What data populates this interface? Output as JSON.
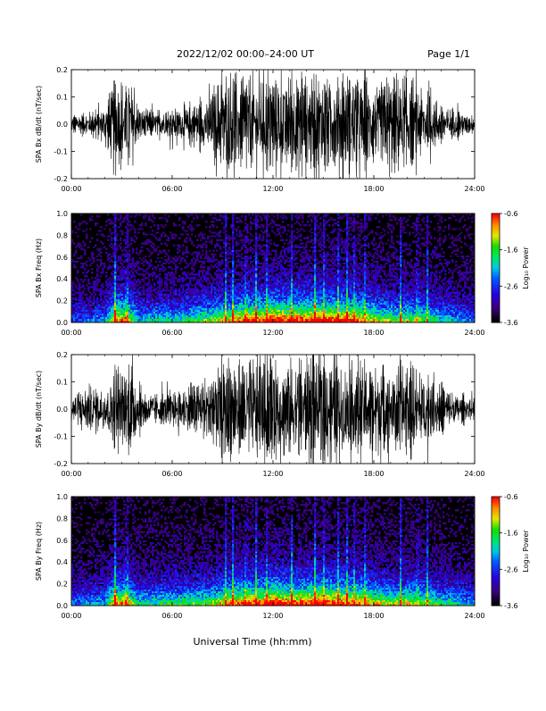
{
  "header": {
    "title": "2022/12/02  00:00–24:00 UT",
    "page": "Page 1/1"
  },
  "xaxis_label": "Universal Time (hh:mm)",
  "colorbar": {
    "label": "Log₁₀ Power",
    "ticks": [
      "-0.6",
      "-1.6",
      "-2.6",
      "-3.6"
    ],
    "range": [
      -3.6,
      -0.6
    ]
  },
  "chart_data": [
    {
      "type": "line",
      "ylabel": "SPA Bx dB/dt (nT/sec)",
      "xlim_hours": [
        0,
        24
      ],
      "ylim": [
        -0.2,
        0.2
      ],
      "x_ticks": [
        "00:00",
        "06:00",
        "12:00",
        "18:00",
        "24:00"
      ],
      "y_ticks": [
        "-0.2",
        "-0.1",
        "0.0",
        "0.1",
        "0.2"
      ],
      "series": [
        {
          "x_hours": [
            0,
            1,
            2,
            2.5,
            3,
            3.5,
            4,
            5,
            6,
            7,
            8,
            9,
            10,
            11,
            12,
            13,
            14,
            15,
            16,
            17,
            18,
            19,
            20,
            21,
            22,
            23,
            24
          ],
          "envelope_amplitude": [
            0.035,
            0.05,
            0.07,
            0.2,
            0.14,
            0.2,
            0.07,
            0.05,
            0.06,
            0.08,
            0.1,
            0.2,
            0.2,
            0.2,
            0.2,
            0.2,
            0.2,
            0.2,
            0.2,
            0.2,
            0.17,
            0.2,
            0.18,
            0.13,
            0.09,
            0.05,
            0.035
          ]
        }
      ]
    },
    {
      "type": "heatmap",
      "ylabel": "SPA Bx Freq (Hz)",
      "xlim_hours": [
        0,
        24
      ],
      "ylim": [
        0,
        1.0
      ],
      "x_ticks": [
        "00:00",
        "06:00",
        "12:00",
        "18:00",
        "24:00"
      ],
      "y_ticks": [
        "0.0",
        "0.2",
        "0.4",
        "0.6",
        "0.8",
        "1.0"
      ],
      "zlim": [
        -3.6,
        -0.6
      ],
      "activity_hours": [
        0,
        2,
        2.6,
        3.3,
        4,
        6,
        8,
        9.5,
        10.5,
        11.5,
        12,
        13,
        14.5,
        15.5,
        16.5,
        17,
        18,
        19,
        20,
        21,
        22,
        24
      ],
      "activity_level": [
        0.3,
        0.4,
        0.8,
        0.8,
        0.45,
        0.5,
        0.6,
        0.75,
        0.85,
        0.85,
        0.95,
        0.85,
        0.9,
        0.9,
        0.85,
        0.85,
        0.7,
        0.6,
        0.65,
        0.6,
        0.5,
        0.35
      ]
    },
    {
      "type": "line",
      "ylabel": "SPA By dB/dt (nT/sec)",
      "xlim_hours": [
        0,
        24
      ],
      "ylim": [
        -0.2,
        0.2
      ],
      "x_ticks": [
        "00:00",
        "06:00",
        "12:00",
        "18:00",
        "24:00"
      ],
      "y_ticks": [
        "-0.2",
        "-0.1",
        "0.0",
        "0.1",
        "0.2"
      ],
      "series": [
        {
          "x_hours": [
            0,
            1,
            2,
            2.5,
            3,
            3.5,
            4,
            5,
            6,
            7,
            8,
            9,
            10,
            11,
            12,
            13,
            14,
            15,
            16,
            17,
            18,
            19,
            20,
            21,
            22,
            23,
            24
          ],
          "envelope_amplitude": [
            0.05,
            0.1,
            0.08,
            0.2,
            0.13,
            0.2,
            0.09,
            0.06,
            0.07,
            0.1,
            0.12,
            0.2,
            0.2,
            0.2,
            0.2,
            0.2,
            0.2,
            0.2,
            0.2,
            0.2,
            0.2,
            0.17,
            0.18,
            0.14,
            0.1,
            0.06,
            0.04
          ]
        }
      ]
    },
    {
      "type": "heatmap",
      "ylabel": "SPA By Freq (Hz)",
      "xlim_hours": [
        0,
        24
      ],
      "ylim": [
        0,
        1.0
      ],
      "x_ticks": [
        "00:00",
        "06:00",
        "12:00",
        "18:00",
        "24:00"
      ],
      "y_ticks": [
        "0.0",
        "0.2",
        "0.4",
        "0.6",
        "0.8",
        "1.0"
      ],
      "zlim": [
        -3.6,
        -0.6
      ],
      "activity_hours": [
        0,
        2,
        2.6,
        3.3,
        4,
        6,
        8,
        9.5,
        10.5,
        11.5,
        12,
        13,
        14.5,
        15.5,
        16.5,
        17,
        18,
        19,
        20,
        21,
        22,
        24
      ],
      "activity_level": [
        0.35,
        0.45,
        0.8,
        0.8,
        0.5,
        0.55,
        0.6,
        0.8,
        0.85,
        0.85,
        0.95,
        0.85,
        0.9,
        0.9,
        0.85,
        0.85,
        0.75,
        0.65,
        0.7,
        0.65,
        0.55,
        0.4
      ]
    }
  ]
}
